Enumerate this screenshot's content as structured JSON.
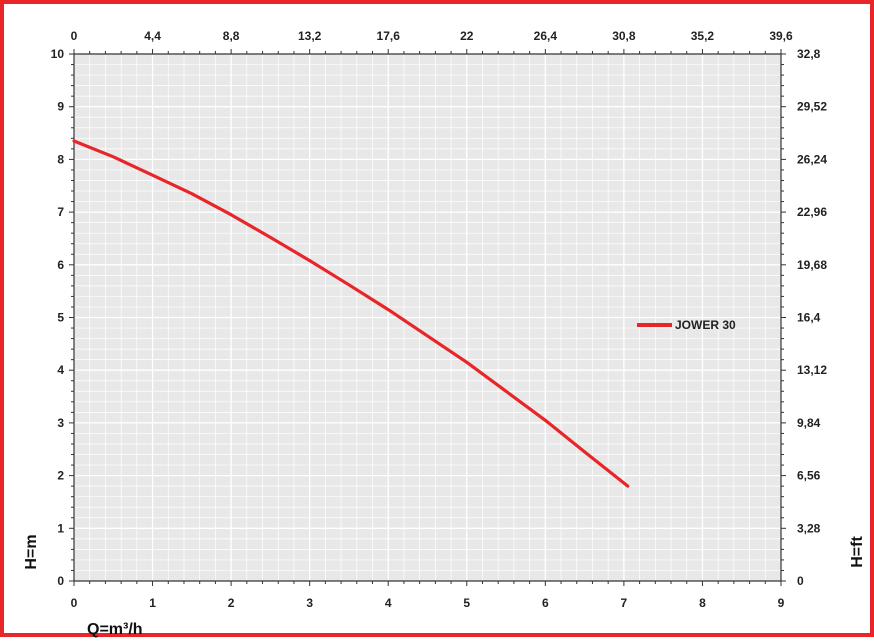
{
  "chart_data": {
    "type": "line",
    "title": "",
    "xlabel": "Q=m³/h",
    "ylabel": "H=m",
    "y2label": "H=ft",
    "xlim": [
      0,
      9
    ],
    "ylim": [
      0,
      10
    ],
    "x_ticks": [
      "0",
      "1",
      "2",
      "3",
      "4",
      "5",
      "6",
      "7",
      "8",
      "9"
    ],
    "y_ticks": [
      "0",
      "1",
      "2",
      "3",
      "4",
      "5",
      "6",
      "7",
      "8",
      "9",
      "10"
    ],
    "top_ticks": [
      "0",
      "4,4",
      "8,8",
      "13,2",
      "17,6",
      "22",
      "26,4",
      "30,8",
      "35,2",
      "39,6"
    ],
    "right_ticks": [
      "0",
      "3,28",
      "6,56",
      "9,84",
      "13,12",
      "16,4",
      "19,68",
      "22,96",
      "26,24",
      "29,52",
      "32,8"
    ],
    "grid": true,
    "legend_position": "right",
    "series": [
      {
        "name": "JOWER 30",
        "color": "#e8262a",
        "x": [
          0,
          0.5,
          1,
          1.5,
          2,
          2.5,
          3,
          3.5,
          4,
          4.5,
          5,
          5.5,
          6,
          6.5,
          7.05
        ],
        "y": [
          8.35,
          8.05,
          7.7,
          7.35,
          6.95,
          6.52,
          6.08,
          5.62,
          5.15,
          4.65,
          4.15,
          3.6,
          3.05,
          2.45,
          1.8
        ]
      }
    ]
  },
  "colors": {
    "frame": "#e8262a",
    "plot_bg": "#e8e8e8",
    "grid": "#ffffff"
  }
}
